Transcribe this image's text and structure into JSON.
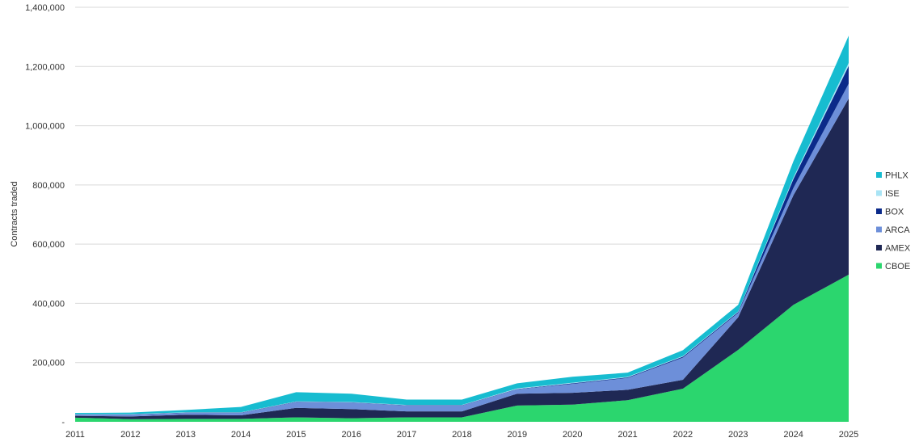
{
  "chart_data": {
    "type": "area",
    "stacked": true,
    "title": "",
    "xlabel": "",
    "ylabel": "Contracts traded",
    "ylim": [
      0,
      1400000
    ],
    "y_ticks": [
      0,
      200000,
      400000,
      600000,
      800000,
      1000000,
      1200000,
      1400000
    ],
    "y_tick_labels": [
      "-",
      "200,000",
      "400,000",
      "600,000",
      "800,000",
      "1,000,000",
      "1,200,000",
      "1,400,000"
    ],
    "grid": true,
    "legend_position": "right",
    "categories": [
      "2011",
      "2012",
      "2013",
      "2014",
      "2015",
      "2016",
      "2017",
      "2018",
      "2019",
      "2020",
      "2021",
      "2022",
      "2023",
      "2024",
      "2025"
    ],
    "series": [
      {
        "name": "CBOE",
        "color": "#2bd66e",
        "values": [
          14000,
          9000,
          10000,
          10000,
          15000,
          12000,
          15000,
          15000,
          55000,
          58000,
          73000,
          112000,
          243000,
          395000,
          497000
        ]
      },
      {
        "name": "AMEX",
        "color": "#1f2854",
        "values": [
          6000,
          9000,
          14000,
          12000,
          32000,
          31000,
          20000,
          20000,
          40000,
          40000,
          35000,
          30000,
          110000,
          370000,
          595000
        ]
      },
      {
        "name": "ARCA",
        "color": "#6d8fd9",
        "values": [
          4000,
          6000,
          6000,
          8000,
          20000,
          22000,
          20000,
          20000,
          15000,
          30000,
          40000,
          75000,
          15000,
          25000,
          50000
        ]
      },
      {
        "name": "BOX",
        "color": "#0b2a8a",
        "values": [
          1000,
          1000,
          1000,
          1000,
          1000,
          1000,
          1000,
          1000,
          1000,
          2000,
          2000,
          3000,
          3000,
          30000,
          60000
        ]
      },
      {
        "name": "ISE",
        "color": "#a9e4f5",
        "values": [
          1000,
          1000,
          1000,
          1000,
          1000,
          1000,
          1000,
          1000,
          2000,
          2000,
          2000,
          2000,
          2000,
          5000,
          10000
        ]
      },
      {
        "name": "PHLX",
        "color": "#17bcd0",
        "values": [
          4000,
          5000,
          8000,
          18000,
          31000,
          28000,
          18000,
          18000,
          17000,
          20000,
          14000,
          20000,
          22000,
          55000,
          92000
        ]
      }
    ]
  }
}
